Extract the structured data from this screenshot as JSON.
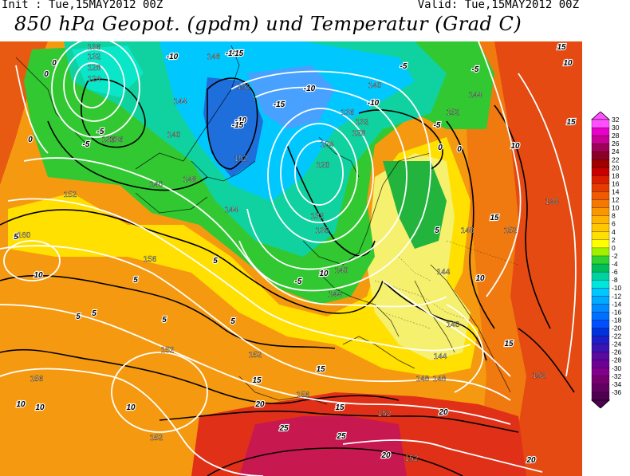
{
  "header": {
    "init": "Init : Tue,15MAY2012 00Z",
    "valid": "Valid: Tue,15MAY2012 00Z",
    "title": "850 hPa Geopot. (gpdm) und Temperatur (Grad C)"
  },
  "map": {
    "geopotential_labels": [
      "136",
      "132",
      "128",
      "124",
      "136",
      "148",
      "152",
      "144",
      "136",
      "140",
      "148",
      "152",
      "140",
      "144",
      "128",
      "132",
      "136",
      "140",
      "124",
      "120",
      "132",
      "136",
      "140",
      "144",
      "152",
      "148",
      "144",
      "152",
      "156",
      "160",
      "152",
      "156",
      "152",
      "156",
      "152",
      "152",
      "148",
      "144",
      "140",
      "144",
      "148",
      "152",
      "152",
      "152",
      "144"
    ],
    "temperature_labels": [
      "-5",
      "-5",
      "0",
      "0",
      "5",
      "5",
      "5",
      "5",
      "10",
      "10",
      "5",
      "10",
      "10",
      "15",
      "15",
      "20",
      "20",
      "25",
      "25",
      "20",
      "20",
      "15",
      "10",
      "5",
      "-5",
      "-10",
      "-15",
      "-15",
      "-10",
      "-5",
      "0",
      "0",
      "5",
      "10",
      "15",
      "15",
      "-10",
      "-5",
      "-5",
      "0",
      "5",
      "10",
      "15",
      "10",
      "15",
      "-10",
      "-15",
      "-10"
    ]
  },
  "colorbar": {
    "labels": [
      "32",
      "30",
      "28",
      "26",
      "24",
      "22",
      "20",
      "18",
      "16",
      "14",
      "12",
      "10",
      "8",
      "6",
      "4",
      "2",
      "0",
      "-2",
      "-4",
      "-6",
      "-8",
      "-10",
      "-12",
      "-14",
      "-16",
      "-18",
      "-20",
      "-22",
      "-24",
      "-26",
      "-28",
      "-30",
      "-32",
      "-34",
      "-36"
    ],
    "colors": [
      "#ff50ff",
      "#e600c8",
      "#c80096",
      "#a0005a",
      "#8c0028",
      "#a00000",
      "#c80000",
      "#dc1e00",
      "#e63c00",
      "#f05a00",
      "#f57800",
      "#fa9600",
      "#ffb400",
      "#ffc800",
      "#ffe000",
      "#ffff00",
      "#a0f000",
      "#32d232",
      "#00be5a",
      "#00d2a0",
      "#00e6dc",
      "#00c8ff",
      "#00aaff",
      "#008cff",
      "#006eff",
      "#0050ff",
      "#0032dc",
      "#1e1ec8",
      "#3c14b4",
      "#5a0aa0",
      "#6e0096",
      "#82008c",
      "#78006e",
      "#640064",
      "#500050"
    ]
  }
}
